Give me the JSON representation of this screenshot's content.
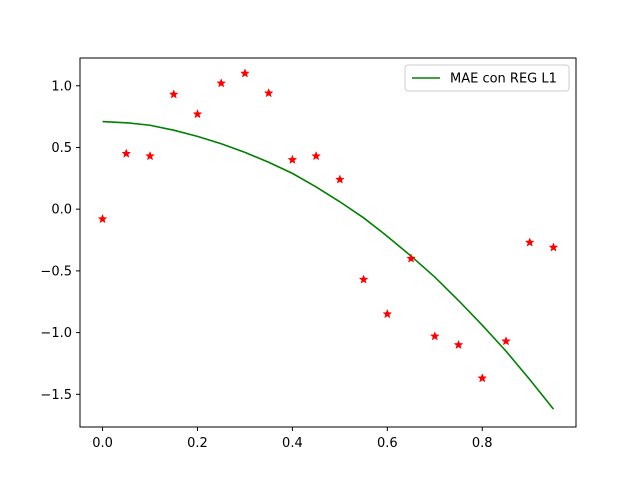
{
  "chart_data": {
    "type": "scatter+line",
    "title": "",
    "xlabel": "",
    "ylabel": "",
    "xlim": [
      -0.0475,
      0.9975
    ],
    "ylim": [
      -1.765,
      1.225
    ],
    "grid": false,
    "legend_position": "top-right",
    "x_ticks": [
      0.0,
      0.2,
      0.4,
      0.6,
      0.8
    ],
    "x_tick_labels": [
      "0.0",
      "0.2",
      "0.4",
      "0.6",
      "0.8"
    ],
    "y_ticks": [
      1.0,
      0.5,
      0.0,
      -0.5,
      -1.0,
      -1.5
    ],
    "y_tick_labels": [
      "1.0",
      "0.5",
      "0.0",
      "−0.5",
      "−1.0",
      "−1.5"
    ],
    "points": {
      "color": "#ff0000",
      "marker": "star",
      "x": [
        0.0,
        0.05,
        0.1,
        0.15,
        0.2,
        0.25,
        0.3,
        0.35,
        0.4,
        0.45,
        0.5,
        0.55,
        0.6,
        0.65,
        0.7,
        0.75,
        0.8,
        0.85,
        0.9,
        0.95
      ],
      "y": [
        -0.08,
        0.45,
        0.43,
        0.93,
        0.77,
        1.02,
        1.1,
        0.94,
        0.4,
        0.43,
        0.24,
        -0.57,
        -0.85,
        -0.4,
        -1.03,
        -1.1,
        -1.37,
        -1.07,
        -0.27,
        -0.31
      ]
    },
    "series": [
      {
        "name": "MAE con REG L1",
        "color": "#008000",
        "x": [
          0.0,
          0.05,
          0.1,
          0.15,
          0.2,
          0.25,
          0.3,
          0.35,
          0.4,
          0.45,
          0.5,
          0.55,
          0.6,
          0.65,
          0.7,
          0.75,
          0.8,
          0.85,
          0.9,
          0.95
        ],
        "y": [
          0.71,
          0.7,
          0.68,
          0.64,
          0.59,
          0.53,
          0.46,
          0.38,
          0.29,
          0.18,
          0.06,
          -0.07,
          -0.22,
          -0.38,
          -0.55,
          -0.74,
          -0.94,
          -1.15,
          -1.38,
          -1.62
        ]
      }
    ]
  }
}
